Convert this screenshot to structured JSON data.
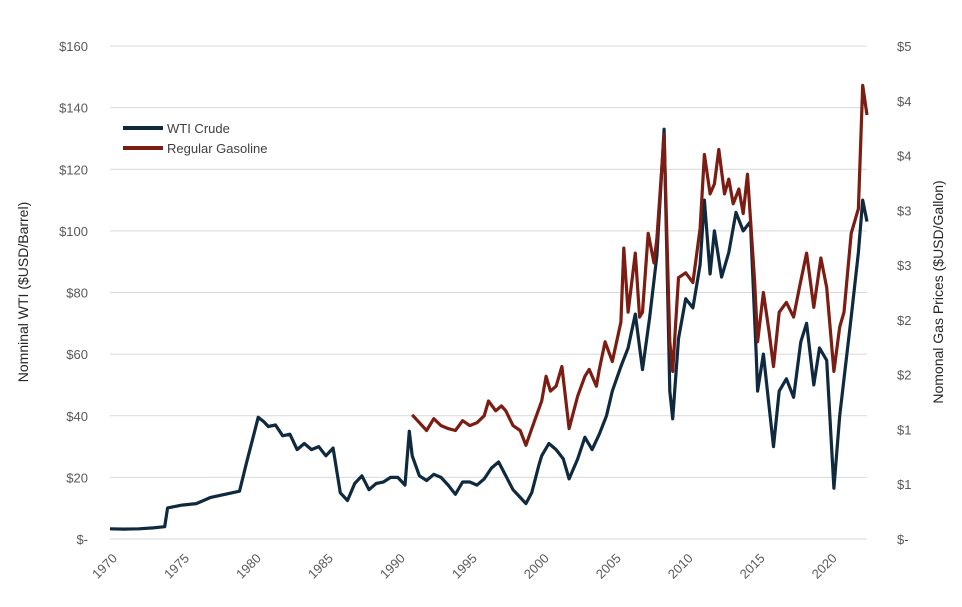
{
  "chart_data": {
    "type": "line",
    "title": "",
    "xlabel": "",
    "ylabel": "Nomninal WTI ($USD/Barrel)",
    "y2label": "Nomonal Gas Prices ($USD/Gallon)",
    "xlim": [
      1970,
      2022.6
    ],
    "ylim": [
      0,
      160
    ],
    "y2lim": [
      0,
      5
    ],
    "x_ticks": [
      "1970",
      "1975",
      "1980",
      "1985",
      "1990",
      "1995",
      "2000",
      "2005",
      "2010",
      "2015",
      "2020"
    ],
    "y_ticks": [
      "$-",
      "$20",
      "$40",
      "$60",
      "$80",
      "$100",
      "$120",
      "$140",
      "$160"
    ],
    "y2_ticks": [
      "$-",
      "$1",
      "$1",
      "$2",
      "$2",
      "$3",
      "$3",
      "$4",
      "$4",
      "$5"
    ],
    "grid": true,
    "legend": "top-left",
    "series": [
      {
        "name": "WTI Crude",
        "axis": "left",
        "color": "#0f2a3f",
        "points": [
          [
            1970.0,
            3.3
          ],
          [
            1971.0,
            3.2
          ],
          [
            1972.0,
            3.3
          ],
          [
            1973.0,
            3.6
          ],
          [
            1973.8,
            4.0
          ],
          [
            1974.0,
            10.1
          ],
          [
            1975.0,
            11.0
          ],
          [
            1976.0,
            11.5
          ],
          [
            1977.0,
            13.5
          ],
          [
            1978.0,
            14.5
          ],
          [
            1979.0,
            15.5
          ],
          [
            1979.5,
            25.0
          ],
          [
            1980.0,
            34.0
          ],
          [
            1980.3,
            39.5
          ],
          [
            1980.7,
            38.0
          ],
          [
            1981.0,
            36.5
          ],
          [
            1981.5,
            37.0
          ],
          [
            1982.0,
            33.5
          ],
          [
            1982.5,
            34.0
          ],
          [
            1983.0,
            29.0
          ],
          [
            1983.5,
            31.0
          ],
          [
            1984.0,
            29.0
          ],
          [
            1984.5,
            30.0
          ],
          [
            1985.0,
            27.0
          ],
          [
            1985.5,
            29.5
          ],
          [
            1986.0,
            15.0
          ],
          [
            1986.5,
            12.5
          ],
          [
            1987.0,
            18.0
          ],
          [
            1987.5,
            20.5
          ],
          [
            1988.0,
            16.0
          ],
          [
            1988.5,
            18.0
          ],
          [
            1989.0,
            18.5
          ],
          [
            1989.5,
            20.0
          ],
          [
            1990.0,
            20.0
          ],
          [
            1990.5,
            17.5
          ],
          [
            1990.8,
            35.0
          ],
          [
            1991.0,
            27.0
          ],
          [
            1991.5,
            20.5
          ],
          [
            1992.0,
            19.0
          ],
          [
            1992.5,
            21.0
          ],
          [
            1993.0,
            20.0
          ],
          [
            1993.5,
            17.5
          ],
          [
            1994.0,
            14.5
          ],
          [
            1994.5,
            18.5
          ],
          [
            1995.0,
            18.5
          ],
          [
            1995.5,
            17.5
          ],
          [
            1996.0,
            19.5
          ],
          [
            1996.5,
            23.0
          ],
          [
            1997.0,
            25.0
          ],
          [
            1997.5,
            20.5
          ],
          [
            1998.0,
            16.0
          ],
          [
            1998.5,
            13.5
          ],
          [
            1998.9,
            11.5
          ],
          [
            1999.3,
            15.0
          ],
          [
            1999.8,
            24.0
          ],
          [
            2000.0,
            27.0
          ],
          [
            2000.5,
            31.0
          ],
          [
            2001.0,
            29.0
          ],
          [
            2001.5,
            26.0
          ],
          [
            2001.9,
            19.5
          ],
          [
            2002.5,
            26.0
          ],
          [
            2003.0,
            33.0
          ],
          [
            2003.5,
            29.0
          ],
          [
            2004.0,
            34.0
          ],
          [
            2004.5,
            40.0
          ],
          [
            2004.9,
            48.0
          ],
          [
            2005.5,
            56.0
          ],
          [
            2006.0,
            62.0
          ],
          [
            2006.5,
            73.0
          ],
          [
            2007.0,
            55.0
          ],
          [
            2007.5,
            72.0
          ],
          [
            2008.0,
            92.0
          ],
          [
            2008.5,
            133.0
          ],
          [
            2008.9,
            48.0
          ],
          [
            2009.1,
            39.0
          ],
          [
            2009.5,
            65.0
          ],
          [
            2010.0,
            78.0
          ],
          [
            2010.5,
            75.0
          ],
          [
            2011.0,
            89.0
          ],
          [
            2011.3,
            110.0
          ],
          [
            2011.7,
            86.0
          ],
          [
            2012.0,
            100.0
          ],
          [
            2012.5,
            85.0
          ],
          [
            2013.0,
            93.0
          ],
          [
            2013.5,
            106.0
          ],
          [
            2014.0,
            100.0
          ],
          [
            2014.5,
            103.0
          ],
          [
            2014.9,
            60.0
          ],
          [
            2015.0,
            48.0
          ],
          [
            2015.4,
            60.0
          ],
          [
            2015.8,
            43.0
          ],
          [
            2016.1,
            30.0
          ],
          [
            2016.5,
            48.0
          ],
          [
            2017.0,
            52.0
          ],
          [
            2017.5,
            46.0
          ],
          [
            2018.0,
            64.0
          ],
          [
            2018.4,
            70.0
          ],
          [
            2018.9,
            50.0
          ],
          [
            2019.3,
            62.0
          ],
          [
            2019.8,
            58.0
          ],
          [
            2020.3,
            16.5
          ],
          [
            2020.7,
            40.0
          ],
          [
            2021.0,
            52.0
          ],
          [
            2021.5,
            72.0
          ],
          [
            2022.0,
            93.0
          ],
          [
            2022.3,
            110.0
          ],
          [
            2022.6,
            103.0
          ]
        ]
      },
      {
        "name": "Regular Gasoline",
        "axis": "right",
        "color": "#7b1d13",
        "points": [
          [
            1991.0,
            1.26
          ],
          [
            1991.5,
            1.18
          ],
          [
            1992.0,
            1.1
          ],
          [
            1992.5,
            1.22
          ],
          [
            1993.0,
            1.15
          ],
          [
            1993.5,
            1.12
          ],
          [
            1994.0,
            1.1
          ],
          [
            1994.5,
            1.2
          ],
          [
            1995.0,
            1.15
          ],
          [
            1995.5,
            1.18
          ],
          [
            1996.0,
            1.25
          ],
          [
            1996.3,
            1.4
          ],
          [
            1996.8,
            1.3
          ],
          [
            1997.2,
            1.35
          ],
          [
            1997.5,
            1.3
          ],
          [
            1998.0,
            1.15
          ],
          [
            1998.5,
            1.1
          ],
          [
            1998.9,
            0.95
          ],
          [
            1999.5,
            1.2
          ],
          [
            2000.0,
            1.4
          ],
          [
            2000.3,
            1.65
          ],
          [
            2000.6,
            1.5
          ],
          [
            2001.0,
            1.55
          ],
          [
            2001.4,
            1.75
          ],
          [
            2001.9,
            1.12
          ],
          [
            2002.5,
            1.45
          ],
          [
            2003.0,
            1.65
          ],
          [
            2003.3,
            1.72
          ],
          [
            2003.8,
            1.55
          ],
          [
            2004.0,
            1.72
          ],
          [
            2004.4,
            2.0
          ],
          [
            2004.9,
            1.8
          ],
          [
            2005.5,
            2.2
          ],
          [
            2005.7,
            2.95
          ],
          [
            2006.0,
            2.3
          ],
          [
            2006.5,
            2.9
          ],
          [
            2006.8,
            2.25
          ],
          [
            2007.0,
            2.3
          ],
          [
            2007.4,
            3.1
          ],
          [
            2007.8,
            2.8
          ],
          [
            2008.0,
            3.05
          ],
          [
            2008.5,
            4.1
          ],
          [
            2008.9,
            2.0
          ],
          [
            2009.1,
            1.7
          ],
          [
            2009.5,
            2.65
          ],
          [
            2010.0,
            2.7
          ],
          [
            2010.5,
            2.6
          ],
          [
            2011.0,
            3.15
          ],
          [
            2011.3,
            3.9
          ],
          [
            2011.7,
            3.5
          ],
          [
            2012.0,
            3.6
          ],
          [
            2012.3,
            3.95
          ],
          [
            2012.7,
            3.5
          ],
          [
            2013.0,
            3.65
          ],
          [
            2013.3,
            3.4
          ],
          [
            2013.7,
            3.55
          ],
          [
            2014.0,
            3.3
          ],
          [
            2014.3,
            3.7
          ],
          [
            2014.8,
            2.6
          ],
          [
            2015.0,
            2.0
          ],
          [
            2015.4,
            2.5
          ],
          [
            2015.8,
            2.1
          ],
          [
            2016.1,
            1.75
          ],
          [
            2016.5,
            2.3
          ],
          [
            2017.0,
            2.4
          ],
          [
            2017.5,
            2.25
          ],
          [
            2017.9,
            2.55
          ],
          [
            2018.4,
            2.9
          ],
          [
            2018.9,
            2.35
          ],
          [
            2019.4,
            2.85
          ],
          [
            2019.8,
            2.55
          ],
          [
            2020.3,
            1.7
          ],
          [
            2020.7,
            2.15
          ],
          [
            2021.0,
            2.3
          ],
          [
            2021.5,
            3.1
          ],
          [
            2022.0,
            3.35
          ],
          [
            2022.3,
            4.6
          ],
          [
            2022.6,
            4.3
          ]
        ]
      }
    ]
  }
}
